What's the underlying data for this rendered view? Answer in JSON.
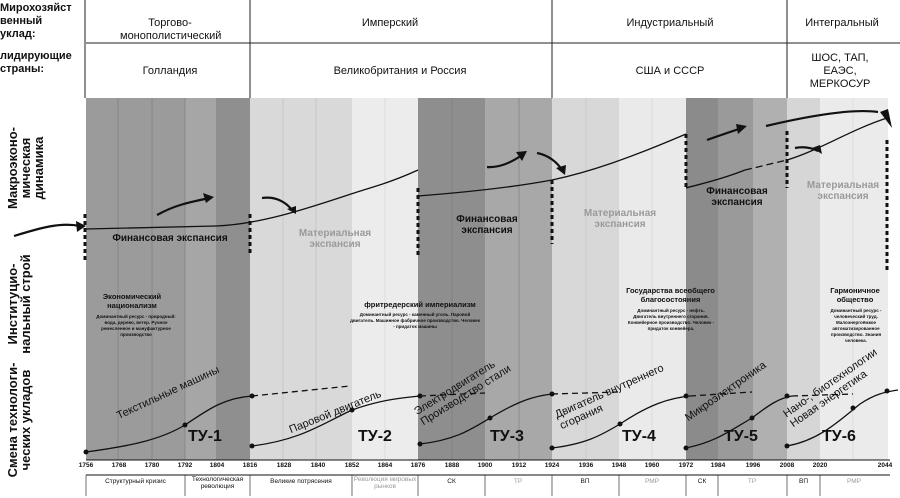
{
  "header": {
    "row1_label": "Мирохозяйст венный уклад:",
    "row2_label": "лидирующие страны:"
  },
  "eras": [
    {
      "name": "Торгово-монополистический",
      "countries": "Голландия"
    },
    {
      "name": "Имперский",
      "countries": "Великобритания и Россия"
    },
    {
      "name": "Индустриальный",
      "countries": "США и СССР"
    },
    {
      "name": "Интегральный",
      "countries": "ШОС, ТАП, ЕАЭС, МЕРКОСУР"
    }
  ],
  "side_labels": {
    "macro": "Макроэконо-мическая динамика",
    "inst": "Институцио-нальный строй",
    "tech": "Смена технологи-ческих укладов"
  },
  "expansion_labels": [
    {
      "text": "Финансовая экспансия",
      "tone": "dark"
    },
    {
      "text": "Материальная экспансия",
      "tone": "light"
    },
    {
      "text": "Финансовая экспансия",
      "tone": "dark"
    },
    {
      "text": "Материальная экспансия",
      "tone": "light"
    },
    {
      "text": "Финансовая экспансия",
      "tone": "dark"
    },
    {
      "text": "Материальная экспансия",
      "tone": "light"
    }
  ],
  "institutions": [
    {
      "title": "Экономический национализм",
      "text": "Доминантный ресурс - природный: вода, дерево, ветер. Ручное ремесленное и мануфактурное производство"
    },
    {
      "title": "фритредерский империализм",
      "text": "Доминантный ресурс - каменный уголь. Паровой двигатель. Машинное фабричное производство. Человек - придаток машины"
    },
    {
      "title": "Государства всеобщего благосостояния",
      "text": "Доминантный ресурс - нефть. Двигатель внутреннего сгорания. Конвейерное производство. Человек - придаток конвейера."
    },
    {
      "title": "Гармоничное общество",
      "text": "Доминантный ресурс - человеческий труд. Малоэнергоёмкое автоматизированное производство. Знания человека."
    }
  ],
  "tech_modes": [
    {
      "tu": "ТУ-1",
      "label": "Текстильные машины"
    },
    {
      "tu": "ТУ-2",
      "label": "Паровой двигатель"
    },
    {
      "tu": "ТУ-3",
      "label": "Электродвигатель Производство стали"
    },
    {
      "tu": "ТУ-4",
      "label": "Двигатель внутреннего сгорания"
    },
    {
      "tu": "ТУ-5",
      "label": "Микроэлектроника"
    },
    {
      "tu": "ТУ-6",
      "label": "Нано-, биотехнологии Новая энергетика"
    }
  ],
  "axis_years": [
    "1756",
    "1768",
    "1780",
    "1792",
    "1804",
    "1816",
    "1828",
    "1840",
    "1852",
    "1864",
    "1876",
    "1888",
    "1900",
    "1912",
    "1924",
    "1936",
    "1948",
    "1960",
    "1972",
    "1984",
    "1996",
    "2008",
    "2020",
    "2044"
  ],
  "phases": [
    {
      "text": "Структурный кризис",
      "gray": false
    },
    {
      "text": "Технологическая революция",
      "gray": false
    },
    {
      "text": "Великие потрясения",
      "gray": false
    },
    {
      "text": "Революция мировых рынков",
      "gray": true
    },
    {
      "text": "СК",
      "gray": false
    },
    {
      "text": "ТР",
      "gray": true
    },
    {
      "text": "ВП",
      "gray": false
    },
    {
      "text": "РМР",
      "gray": true
    },
    {
      "text": "СК",
      "gray": false
    },
    {
      "text": "ТР",
      "gray": true
    },
    {
      "text": "ВП",
      "gray": false
    },
    {
      "text": "РМР",
      "gray": true
    }
  ]
}
